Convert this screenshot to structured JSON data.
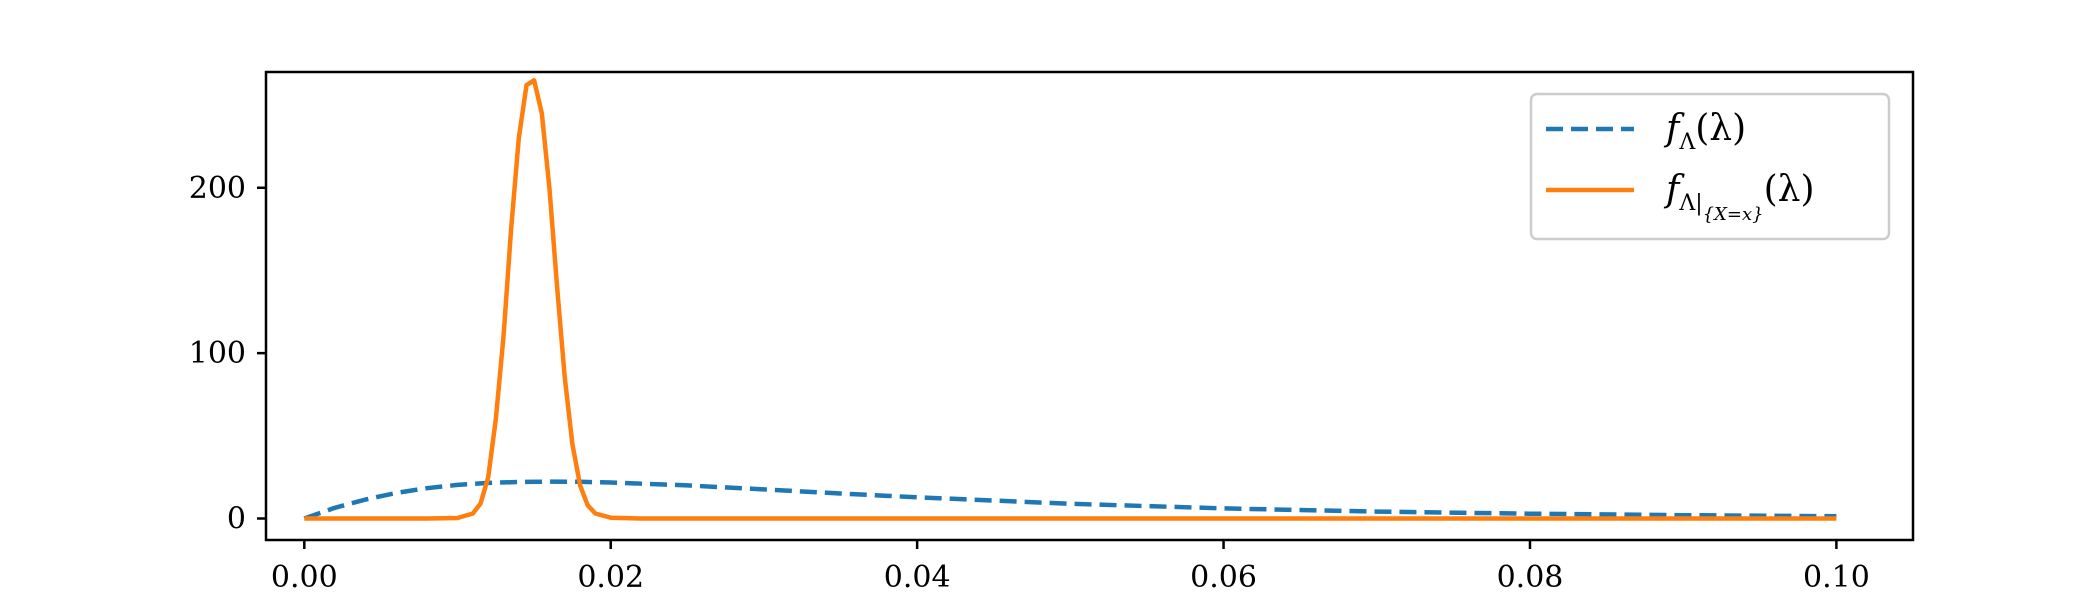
{
  "chart_data": {
    "type": "line",
    "title": "",
    "xlabel": "",
    "ylabel": "",
    "xlim": [
      -0.0025,
      0.105
    ],
    "ylim": [
      -13,
      270
    ],
    "grid": false,
    "legend_position": "top-right",
    "x_ticks": [
      0.0,
      0.02,
      0.04,
      0.06,
      0.08,
      0.1
    ],
    "x_tick_labels": [
      "0.00",
      "0.02",
      "0.04",
      "0.06",
      "0.08",
      "0.10"
    ],
    "y_ticks": [
      0,
      100,
      200
    ],
    "y_tick_labels": [
      "0",
      "100",
      "200"
    ],
    "series": [
      {
        "name": "f_Λ(λ)",
        "legend": {
          "main": "f",
          "sub": "Λ",
          "arg": "(λ)"
        },
        "color": "#1f77b4",
        "style": "dashed",
        "x": [
          0.0,
          0.002,
          0.004,
          0.006,
          0.008,
          0.01,
          0.012,
          0.014,
          0.016,
          0.018,
          0.02,
          0.025,
          0.03,
          0.035,
          0.04,
          0.05,
          0.06,
          0.07,
          0.08,
          0.09,
          0.1
        ],
        "y": [
          0.0,
          6.5,
          11.5,
          15.5,
          18.3,
          20.3,
          21.5,
          22.1,
          22.3,
          22.2,
          21.8,
          20.0,
          17.6,
          15.1,
          12.8,
          8.9,
          6.1,
          4.2,
          2.9,
          2.0,
          1.4
        ]
      },
      {
        "name": "f_Λ|{X=x}(λ)",
        "legend": {
          "main": "f",
          "sub": "Λ|",
          "subsub": "{X=x}",
          "arg": "(λ)"
        },
        "color": "#ff7f0e",
        "style": "solid",
        "x": [
          0.0,
          0.008,
          0.01,
          0.011,
          0.0115,
          0.012,
          0.0125,
          0.013,
          0.0135,
          0.014,
          0.0145,
          0.015,
          0.0155,
          0.016,
          0.0165,
          0.017,
          0.0175,
          0.018,
          0.0185,
          0.019,
          0.02,
          0.022,
          0.03,
          0.1
        ],
        "y": [
          0.0,
          0.0,
          0.3,
          3.0,
          9.0,
          25.0,
          60.0,
          110.0,
          175.0,
          230.0,
          262.0,
          265.0,
          245.0,
          200.0,
          140.0,
          85.0,
          45.0,
          20.0,
          8.0,
          3.0,
          0.5,
          0.0,
          0.0,
          0.0
        ]
      }
    ]
  }
}
